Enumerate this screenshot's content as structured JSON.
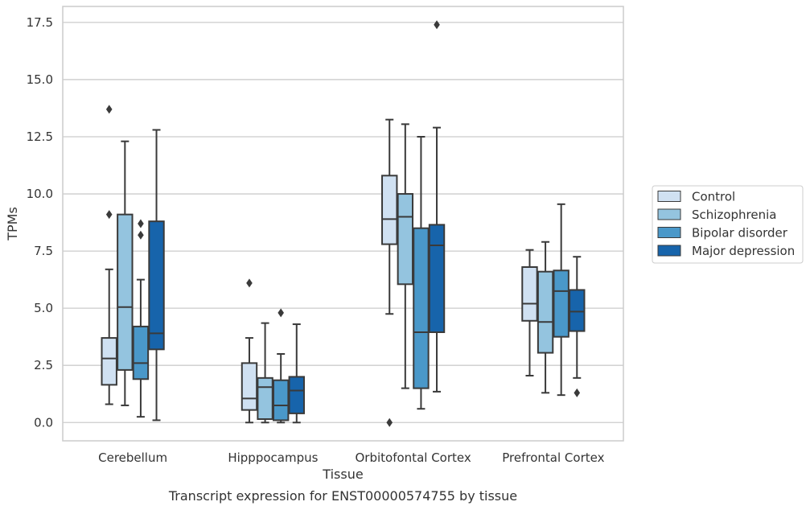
{
  "chart_data": {
    "type": "box",
    "caption": "Transcript expression for ENST00000574755 by tissue",
    "xlabel": "Tissue",
    "ylabel": "TPMs",
    "ylim": [
      -0.8,
      18.2
    ],
    "yticks": [
      0.0,
      2.5,
      5.0,
      7.5,
      10.0,
      12.5,
      15.0,
      17.5
    ],
    "ytick_labels": [
      "0.0",
      "2.5",
      "5.0",
      "7.5",
      "10.0",
      "12.5",
      "15.0",
      "17.5"
    ],
    "grid": "horizontal",
    "legend_position": "right",
    "categories": [
      "Cerebellum",
      "Hipppocampus",
      "Orbitofontal Cortex",
      "Prefrontal Cortex"
    ],
    "series": [
      {
        "name": "Control",
        "color": "#d0e1f2",
        "boxes": [
          {
            "whislo": 0.8,
            "q1": 1.65,
            "med": 2.8,
            "q3": 3.7,
            "whishi": 6.7,
            "fliers": [
              9.1,
              13.7
            ]
          },
          {
            "whislo": 0.0,
            "q1": 0.55,
            "med": 1.05,
            "q3": 2.6,
            "whishi": 3.7,
            "fliers": [
              6.1
            ]
          },
          {
            "whislo": 4.75,
            "q1": 7.8,
            "med": 8.9,
            "q3": 10.8,
            "whishi": 13.25,
            "fliers": [
              0.0
            ]
          },
          {
            "whislo": 2.05,
            "q1": 4.45,
            "med": 5.2,
            "q3": 6.8,
            "whishi": 7.55,
            "fliers": []
          }
        ]
      },
      {
        "name": "Schizophrenia",
        "color": "#94c4df",
        "boxes": [
          {
            "whislo": 0.75,
            "q1": 2.3,
            "med": 5.05,
            "q3": 9.1,
            "whishi": 12.3,
            "fliers": []
          },
          {
            "whislo": 0.0,
            "q1": 0.15,
            "med": 1.55,
            "q3": 1.95,
            "whishi": 4.35,
            "fliers": []
          },
          {
            "whislo": 1.5,
            "q1": 6.05,
            "med": 9.0,
            "q3": 10.0,
            "whishi": 13.05,
            "fliers": []
          },
          {
            "whislo": 1.3,
            "q1": 3.05,
            "med": 4.4,
            "q3": 6.6,
            "whishi": 7.9,
            "fliers": []
          }
        ]
      },
      {
        "name": "Bipolar disorder",
        "color": "#4a98c9",
        "boxes": [
          {
            "whislo": 0.25,
            "q1": 1.9,
            "med": 2.6,
            "q3": 4.2,
            "whishi": 6.25,
            "fliers": [
              8.2,
              8.7
            ]
          },
          {
            "whislo": 0.0,
            "q1": 0.1,
            "med": 0.75,
            "q3": 1.85,
            "whishi": 3.0,
            "fliers": [
              4.8
            ]
          },
          {
            "whislo": 0.6,
            "q1": 1.5,
            "med": 3.95,
            "q3": 8.5,
            "whishi": 12.5,
            "fliers": []
          },
          {
            "whislo": 1.2,
            "q1": 3.75,
            "med": 5.75,
            "q3": 6.65,
            "whishi": 9.55,
            "fliers": []
          }
        ]
      },
      {
        "name": "Major depression",
        "color": "#1764ab",
        "boxes": [
          {
            "whislo": 0.1,
            "q1": 3.2,
            "med": 3.9,
            "q3": 8.8,
            "whishi": 12.8,
            "fliers": []
          },
          {
            "whislo": 0.0,
            "q1": 0.4,
            "med": 1.4,
            "q3": 2.0,
            "whishi": 4.3,
            "fliers": []
          },
          {
            "whislo": 1.35,
            "q1": 3.95,
            "med": 7.75,
            "q3": 8.65,
            "whishi": 12.9,
            "fliers": [
              17.4
            ]
          },
          {
            "whislo": 1.95,
            "q1": 4.0,
            "med": 4.85,
            "q3": 5.8,
            "whishi": 7.25,
            "fliers": [
              1.3
            ]
          }
        ]
      }
    ]
  }
}
